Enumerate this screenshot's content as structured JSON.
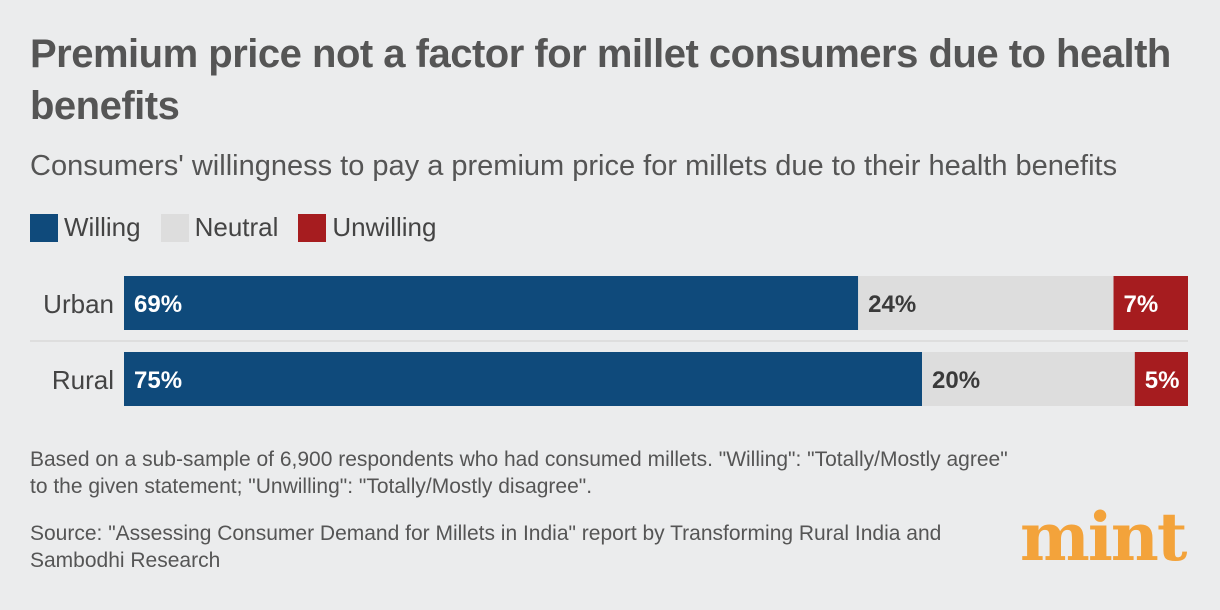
{
  "title": "Premium price not a factor for millet consumers due to health benefits",
  "subtitle": "Consumers' willingness to pay a premium price for millets due to their health benefits",
  "legend": [
    {
      "label": "Willing",
      "color": "#0f4a7b"
    },
    {
      "label": "Neutral",
      "color": "#dddddd"
    },
    {
      "label": "Unwilling",
      "color": "#a61c1f"
    }
  ],
  "chart_data": {
    "type": "bar",
    "orientation": "horizontal",
    "stacked": true,
    "categories": [
      "Urban",
      "Rural"
    ],
    "series": [
      {
        "name": "Willing",
        "values": [
          69,
          75
        ],
        "labels": [
          "69%",
          "75%"
        ],
        "color": "#0f4a7b"
      },
      {
        "name": "Neutral",
        "values": [
          24,
          20
        ],
        "labels": [
          "24%",
          "20%"
        ],
        "color": "#dddddd"
      },
      {
        "name": "Unwilling",
        "values": [
          7,
          5
        ],
        "labels": [
          "7%",
          "5%"
        ],
        "color": "#a61c1f"
      }
    ],
    "xlim": [
      0,
      100
    ],
    "title": "Premium price not a factor for millet consumers due to health benefits",
    "xlabel": "",
    "ylabel": ""
  },
  "note": "Based on a sub-sample of 6,900 respondents who had consumed millets. \"Willing\": \"Totally/Mostly agree\" to the given statement; \"Unwilling\": \"Totally/Mostly disagree\".",
  "source": "Source: \"Assessing Consumer Demand for Millets in India\" report by Transforming Rural India and Sambodhi Research",
  "brand": {
    "name": "mint",
    "color": "#f3a33b"
  }
}
